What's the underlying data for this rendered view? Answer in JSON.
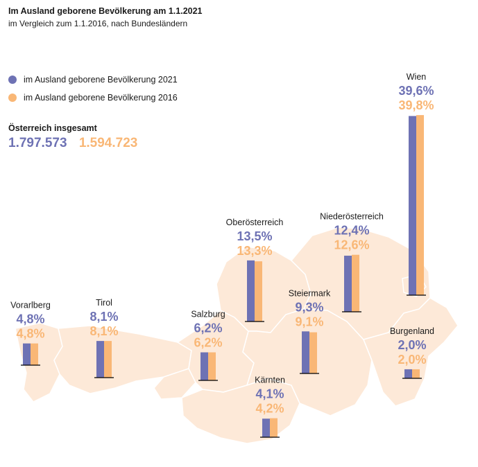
{
  "header": {
    "title": "Im Ausland geborene Bevölkerung am 1.1.2021",
    "subtitle": "im Vergleich zum 1.1.2016, nach Bundesländern"
  },
  "legend": [
    {
      "label": "im Ausland geborene Bevölkerung 2021",
      "color": "#6e72b4"
    },
    {
      "label": "im Ausland geborene Bevölkerung 2016",
      "color": "#f9b776"
    }
  ],
  "totals": {
    "label": "Österreich insgesamt",
    "value_2021": "1.797.573",
    "value_2016": "1.594.723"
  },
  "colors": {
    "map_fill": "#fde9d8",
    "map_border": "#ffffff",
    "series_2021": "#6e72b4",
    "series_2016": "#f9b776",
    "baseline": "#000000"
  },
  "chart_data": {
    "type": "bar",
    "title": "Im Ausland geborene Bevölkerung am 1.1.2021",
    "subtitle": "im Vergleich zum 1.1.2016, nach Bundesländern",
    "unit": "%",
    "categories": [
      "Vorarlberg",
      "Tirol",
      "Salzburg",
      "Oberösterreich",
      "Kärnten",
      "Steiermark",
      "Niederösterreich",
      "Burgenland",
      "Wien"
    ],
    "series": [
      {
        "name": "im Ausland geborene Bevölkerung 2021",
        "values": [
          4.8,
          8.1,
          6.2,
          13.5,
          4.1,
          9.3,
          12.4,
          2.0,
          39.6
        ]
      },
      {
        "name": "im Ausland geborene Bevölkerung 2016",
        "values": [
          4.8,
          8.1,
          6.2,
          13.3,
          4.2,
          9.1,
          12.6,
          2.0,
          39.8
        ]
      }
    ],
    "labels_2021": [
      "4,8%",
      "8,1%",
      "6,2%",
      "13,5%",
      "4,1%",
      "9,3%",
      "12,4%",
      "2,0%",
      "39,6%"
    ],
    "labels_2016": [
      "4,8%",
      "8,1%",
      "6,2%",
      "13,3%",
      "4,2%",
      "9,1%",
      "12,6%",
      "2,0%",
      "39,8%"
    ],
    "legend_placement": "top-left",
    "grid": false
  }
}
